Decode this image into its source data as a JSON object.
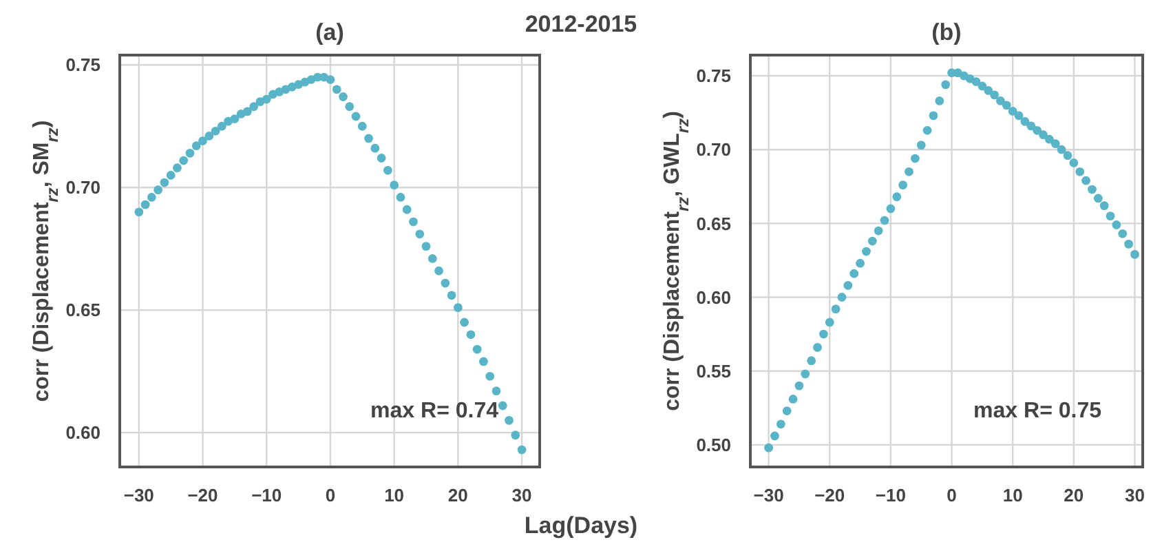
{
  "chart_data": [
    {
      "type": "scatter",
      "title": "(a)",
      "ylabel": "corr (Displacement$_{rz}$, SM$_{rz}$)",
      "xlabel": "Lag(Days)",
      "annotations": [
        "2012-2015",
        "max R= 0.74"
      ],
      "marker": "circle",
      "grid": true,
      "x": [
        -30,
        -29,
        -28,
        -27,
        -26,
        -25,
        -24,
        -23,
        -22,
        -21,
        -20,
        -19,
        -18,
        -17,
        -16,
        -15,
        -14,
        -13,
        -12,
        -11,
        -10,
        -9,
        -8,
        -7,
        -6,
        -5,
        -4,
        -3,
        -2,
        -1,
        0,
        1,
        2,
        3,
        4,
        5,
        6,
        7,
        8,
        9,
        10,
        11,
        12,
        13,
        14,
        15,
        16,
        17,
        18,
        19,
        20,
        21,
        22,
        23,
        24,
        25,
        26,
        27,
        28,
        29,
        30
      ],
      "series": [
        {
          "color": "#5ab4c8",
          "values": [
            0.69,
            0.693,
            0.696,
            0.699,
            0.702,
            0.705,
            0.708,
            0.711,
            0.714,
            0.717,
            0.719,
            0.721,
            0.723,
            0.725,
            0.727,
            0.728,
            0.73,
            0.731,
            0.733,
            0.735,
            0.736,
            0.738,
            0.739,
            0.74,
            0.741,
            0.742,
            0.743,
            0.744,
            0.745,
            0.745,
            0.744,
            0.74,
            0.737,
            0.733,
            0.729,
            0.725,
            0.72,
            0.716,
            0.712,
            0.707,
            0.701,
            0.696,
            0.691,
            0.686,
            0.681,
            0.676,
            0.671,
            0.666,
            0.661,
            0.656,
            0.651,
            0.645,
            0.64,
            0.634,
            0.629,
            0.623,
            0.617,
            0.611,
            0.605,
            0.599,
            0.593
          ]
        }
      ],
      "xlim": [
        -33,
        32.8
      ],
      "xticks": [
        {
          "value": -30,
          "label": "−30"
        },
        {
          "value": -20,
          "label": "−20"
        },
        {
          "value": -10,
          "label": "−10"
        },
        0,
        10,
        20,
        30
      ],
      "ylim": [
        0.586,
        0.754
      ],
      "yticks": [
        {
          "value": 0.6,
          "label": "0.60"
        },
        {
          "value": 0.65,
          "label": "0.65"
        },
        {
          "value": 0.7,
          "label": "0.70"
        },
        {
          "value": 0.75,
          "label": "0.75"
        }
      ]
    },
    {
      "type": "scatter",
      "title": "(b)",
      "ylabel": "corr (Displacement$_{rz}$, GWL$_{rz}$)",
      "annotations": [
        "max R= 0.75"
      ],
      "marker": "circle",
      "grid": true,
      "x": [
        -30,
        -29,
        -28,
        -27,
        -26,
        -25,
        -24,
        -23,
        -22,
        -21,
        -20,
        -19,
        -18,
        -17,
        -16,
        -15,
        -14,
        -13,
        -12,
        -11,
        -10,
        -9,
        -8,
        -7,
        -6,
        -5,
        -4,
        -3,
        -2,
        -1,
        0,
        1,
        2,
        3,
        4,
        5,
        6,
        7,
        8,
        9,
        10,
        11,
        12,
        13,
        14,
        15,
        16,
        17,
        18,
        19,
        20,
        21,
        22,
        23,
        24,
        25,
        26,
        27,
        28,
        29,
        30
      ],
      "series": [
        {
          "color": "#5ab4c8",
          "values": [
            0.498,
            0.506,
            0.514,
            0.523,
            0.531,
            0.54,
            0.548,
            0.557,
            0.566,
            0.575,
            0.583,
            0.592,
            0.6,
            0.608,
            0.616,
            0.623,
            0.631,
            0.638,
            0.645,
            0.652,
            0.66,
            0.668,
            0.676,
            0.685,
            0.694,
            0.703,
            0.713,
            0.723,
            0.733,
            0.744,
            0.752,
            0.752,
            0.75,
            0.748,
            0.746,
            0.743,
            0.74,
            0.737,
            0.733,
            0.73,
            0.726,
            0.723,
            0.719,
            0.716,
            0.713,
            0.71,
            0.707,
            0.704,
            0.7,
            0.696,
            0.691,
            0.685,
            0.679,
            0.673,
            0.667,
            0.662,
            0.655,
            0.649,
            0.643,
            0.636,
            0.629
          ]
        }
      ],
      "xlim": [
        -33,
        31.3
      ],
      "xticks": [
        {
          "value": -30,
          "label": "−30"
        },
        {
          "value": -20,
          "label": "−20"
        },
        {
          "value": -10,
          "label": "−10"
        },
        0,
        10,
        20,
        30
      ],
      "ylim": [
        0.485,
        0.764
      ],
      "yticks": [
        {
          "value": 0.5,
          "label": "0.50"
        },
        {
          "value": 0.55,
          "label": "0.55"
        },
        {
          "value": 0.6,
          "label": "0.60"
        },
        {
          "value": 0.65,
          "label": "0.65"
        },
        {
          "value": 0.7,
          "label": "0.70"
        },
        {
          "value": 0.75,
          "label": "0.75"
        }
      ]
    }
  ]
}
